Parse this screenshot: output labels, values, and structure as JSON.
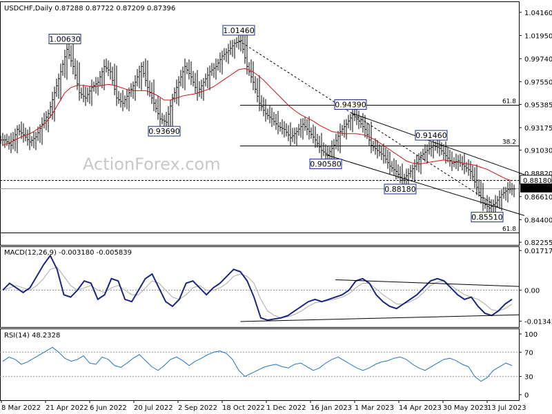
{
  "chart_data": {
    "type": "line",
    "panels": [
      {
        "name": "price",
        "header": {
          "symbol": "USDCHF,Daily",
          "values": "0.87288 0.87722 0.87209 0.87396"
        },
        "y_ticks": [
          "1.04160",
          "1.01950",
          "0.99740",
          "0.97550",
          "0.95385",
          "0.93175",
          "0.91030",
          "0.88820",
          "0.86610",
          "0.84400",
          "0.82255"
        ],
        "ylim": [
          0.82,
          1.052
        ],
        "current_price_label": "0.87396",
        "level_label": "0.88180",
        "close_series": [
          0.92,
          0.915,
          0.93,
          0.925,
          0.918,
          0.923,
          0.935,
          0.945,
          0.965,
          0.985,
          1.0063,
          0.99,
          0.965,
          0.96,
          0.97,
          0.975,
          0.99,
          0.985,
          0.96,
          0.955,
          0.965,
          0.975,
          0.99,
          0.97,
          0.955,
          0.94,
          0.9369,
          0.96,
          0.975,
          0.99,
          0.98,
          0.965,
          0.975,
          0.985,
          0.99,
          1.0,
          1.005,
          1.012,
          1.0146,
          0.99,
          0.975,
          0.955,
          0.945,
          0.94,
          0.933,
          0.93,
          0.922,
          0.928,
          0.935,
          0.928,
          0.92,
          0.91,
          0.9058,
          0.915,
          0.928,
          0.935,
          0.9439,
          0.938,
          0.93,
          0.915,
          0.91,
          0.905,
          0.895,
          0.89,
          0.8818,
          0.888,
          0.895,
          0.905,
          0.91,
          0.9146,
          0.912,
          0.905,
          0.898,
          0.9,
          0.895,
          0.89,
          0.875,
          0.86,
          0.8551,
          0.86,
          0.868,
          0.873,
          0.8735
        ],
        "ma_series": [
          0.915,
          0.917,
          0.92,
          0.923,
          0.925,
          0.928,
          0.932,
          0.937,
          0.945,
          0.955,
          0.965,
          0.97,
          0.972,
          0.972,
          0.971,
          0.971,
          0.972,
          0.973,
          0.972,
          0.97,
          0.968,
          0.967,
          0.967,
          0.967,
          0.965,
          0.962,
          0.958,
          0.958,
          0.96,
          0.962,
          0.963,
          0.964,
          0.966,
          0.968,
          0.971,
          0.975,
          0.979,
          0.983,
          0.987,
          0.988,
          0.986,
          0.982,
          0.977,
          0.971,
          0.965,
          0.959,
          0.953,
          0.948,
          0.944,
          0.941,
          0.938,
          0.934,
          0.931,
          0.928,
          0.927,
          0.926,
          0.926,
          0.926,
          0.925,
          0.923,
          0.92,
          0.916,
          0.912,
          0.908,
          0.904,
          0.9,
          0.898,
          0.897,
          0.898,
          0.899,
          0.9,
          0.901,
          0.9,
          0.899,
          0.898,
          0.897,
          0.896,
          0.894,
          0.892,
          0.889,
          0.886,
          0.883,
          0.881
        ],
        "annotations": [
          {
            "label": "1.00630",
            "value": 1.0063
          },
          {
            "label": "1.01460",
            "value": 1.0146
          },
          {
            "label": "0.93690",
            "value": 0.9369
          },
          {
            "label": "0.94390",
            "value": 0.9439
          },
          {
            "label": "0.90580",
            "value": 0.9058
          },
          {
            "label": "0.91460",
            "value": 0.9146
          },
          {
            "label": "0.88180",
            "value": 0.8818
          },
          {
            "label": "0.85510",
            "value": 0.8551
          }
        ],
        "fib_levels": [
          {
            "label": "61.8",
            "value": 0.9536
          },
          {
            "label": "38.2",
            "value": 0.9146
          },
          {
            "label": "61.8",
            "value": 0.8319
          }
        ],
        "watermark": "ActionForex.com"
      },
      {
        "name": "macd",
        "header": "MACD(12,26,9) -0.003180 -0.005839",
        "y_ticks": [
          "0.017176",
          "0.00",
          "-0.013437"
        ],
        "ylim": [
          -0.016,
          0.019
        ],
        "macd_series": [
          0.0,
          0.003,
          0.001,
          -0.001,
          0.001,
          0.006,
          0.011,
          0.015,
          0.009,
          -0.002,
          -0.003,
          0.0,
          0.004,
          0.003,
          -0.004,
          -0.002,
          0.005,
          0.004,
          -0.004,
          -0.005,
          0.0,
          0.005,
          0.007,
          0.001,
          -0.005,
          -0.007,
          -0.004,
          0.003,
          0.004,
          0.001,
          -0.002,
          0.001,
          0.003,
          0.006,
          0.009,
          0.008,
          0.004,
          -0.003,
          -0.012,
          -0.013,
          -0.0125,
          -0.012,
          -0.011,
          -0.009,
          -0.007,
          -0.005,
          -0.004,
          -0.005,
          -0.004,
          -0.003,
          -0.002,
          0.0,
          0.004,
          0.005,
          0.003,
          -0.002,
          -0.005,
          -0.007,
          -0.008,
          -0.006,
          -0.004,
          -0.002,
          0.001,
          0.004,
          0.005,
          0.004,
          0.001,
          -0.002,
          -0.004,
          -0.003,
          -0.007,
          -0.01,
          -0.011,
          -0.009,
          -0.006,
          -0.004
        ],
        "signal_series": [
          0.0,
          0.001,
          0.002,
          0.001,
          0.0,
          0.002,
          0.005,
          0.009,
          0.01,
          0.006,
          0.002,
          0.0,
          0.001,
          0.002,
          0.0,
          -0.001,
          0.001,
          0.002,
          0.0,
          -0.002,
          -0.002,
          0.001,
          0.004,
          0.003,
          0.0,
          -0.003,
          -0.004,
          -0.002,
          0.001,
          0.002,
          0.0,
          0.0,
          0.001,
          0.003,
          0.006,
          0.007,
          0.006,
          0.003,
          -0.004,
          -0.009,
          -0.011,
          -0.012,
          -0.0115,
          -0.0105,
          -0.009,
          -0.007,
          -0.0055,
          -0.005,
          -0.0045,
          -0.0038,
          -0.003,
          -0.0015,
          0.001,
          0.003,
          0.003,
          0.0005,
          -0.002,
          -0.004,
          -0.006,
          -0.006,
          -0.005,
          -0.0035,
          -0.001,
          0.002,
          0.0035,
          0.004,
          0.002,
          0.0,
          -0.002,
          -0.003,
          -0.004,
          -0.006,
          -0.0085,
          -0.009,
          -0.008,
          -0.006
        ]
      },
      {
        "name": "rsi",
        "header": "RSI(14) 48.2328",
        "y_ticks": [
          "100",
          "70",
          "30",
          "0"
        ],
        "ylim": [
          0,
          100
        ],
        "rsi_series": [
          55,
          62,
          58,
          50,
          54,
          60,
          66,
          72,
          78,
          70,
          60,
          55,
          58,
          64,
          52,
          50,
          62,
          58,
          48,
          45,
          52,
          60,
          66,
          56,
          46,
          40,
          48,
          58,
          62,
          56,
          48,
          55,
          60,
          66,
          70,
          72,
          68,
          58,
          40,
          30,
          35,
          40,
          45,
          48,
          50,
          46,
          44,
          50,
          52,
          46,
          40,
          44,
          52,
          58,
          62,
          56,
          50,
          44,
          40,
          44,
          50,
          54,
          56,
          60,
          62,
          58,
          50,
          44,
          40,
          46,
          52,
          58,
          60,
          56,
          50,
          46,
          30,
          22,
          28,
          40,
          46,
          52,
          48
        ]
      }
    ],
    "x_tick_labels": [
      "8 Mar 2022",
      "21 Apr 2022",
      "6 Jun 2022",
      "20 Jul 2022",
      "2 Sep 2022",
      "18 Oct 2022",
      "1 Dec 2022",
      "16 Jan 2023",
      "1 Mar 2023",
      "14 Apr 2023",
      "30 May 2023",
      "13 Jul 2023"
    ],
    "grid": false,
    "legend": "none"
  }
}
